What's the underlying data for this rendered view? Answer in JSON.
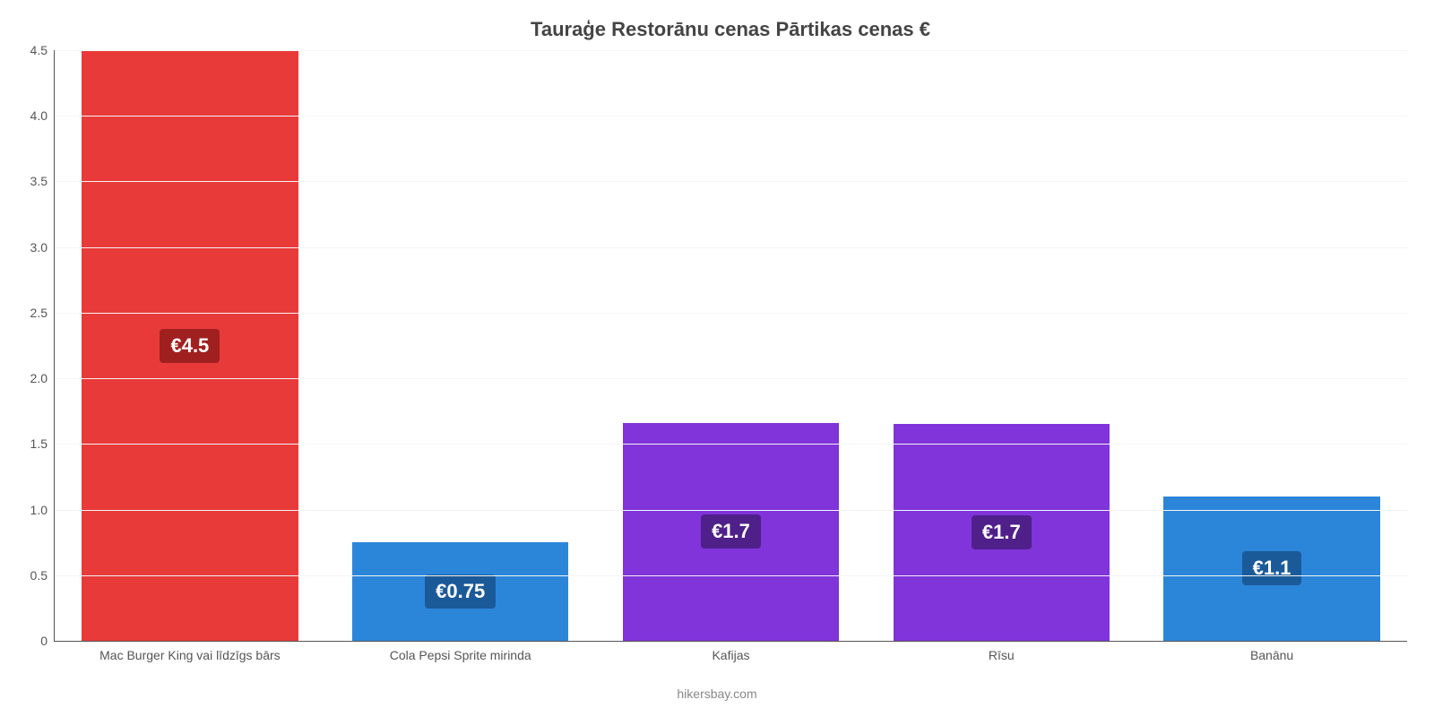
{
  "chart": {
    "type": "bar",
    "title": "Tauraģe Restorānu cenas Pārtikas cenas €",
    "title_fontsize": 22,
    "title_color": "#444444",
    "attribution": "hikersbay.com",
    "attribution_color": "#888888",
    "background_color": "#ffffff",
    "axis_color": "#555555",
    "tick_label_color": "#555555",
    "tick_label_fontsize": 14,
    "grid_color": "#f4f4f4",
    "ylim": [
      0,
      4.5
    ],
    "ytick_step": 0.5,
    "yticks": [
      {
        "value": 0,
        "label": "0"
      },
      {
        "value": 0.5,
        "label": "0.5"
      },
      {
        "value": 1.0,
        "label": "1.0"
      },
      {
        "value": 1.5,
        "label": "1.5"
      },
      {
        "value": 2.0,
        "label": "2.0"
      },
      {
        "value": 2.5,
        "label": "2.5"
      },
      {
        "value": 3.0,
        "label": "3.0"
      },
      {
        "value": 3.5,
        "label": "3.5"
      },
      {
        "value": 4.0,
        "label": "4.0"
      },
      {
        "value": 4.5,
        "label": "4.5"
      }
    ],
    "bar_width": 0.8,
    "value_label_fontsize": 22,
    "value_label_color": "#ffffff",
    "items": [
      {
        "category": "Mac Burger King vai līdzīgs bārs",
        "value": 4.5,
        "value_label": "€4.5",
        "bar_color": "#e93a3a",
        "label_bg_color": "#a02020"
      },
      {
        "category": "Cola Pepsi Sprite mirinda",
        "value": 0.75,
        "value_label": "€0.75",
        "bar_color": "#2b86d9",
        "label_bg_color": "#1b5a99"
      },
      {
        "category": "Kafijas",
        "value": 1.66,
        "value_label": "€1.7",
        "bar_color": "#8034d9",
        "label_bg_color": "#4f1f8a"
      },
      {
        "category": "Rīsu",
        "value": 1.65,
        "value_label": "€1.7",
        "bar_color": "#8034d9",
        "label_bg_color": "#4f1f8a"
      },
      {
        "category": "Banānu",
        "value": 1.1,
        "value_label": "€1.1",
        "bar_color": "#2b86d9",
        "label_bg_color": "#1b5a99"
      }
    ]
  }
}
